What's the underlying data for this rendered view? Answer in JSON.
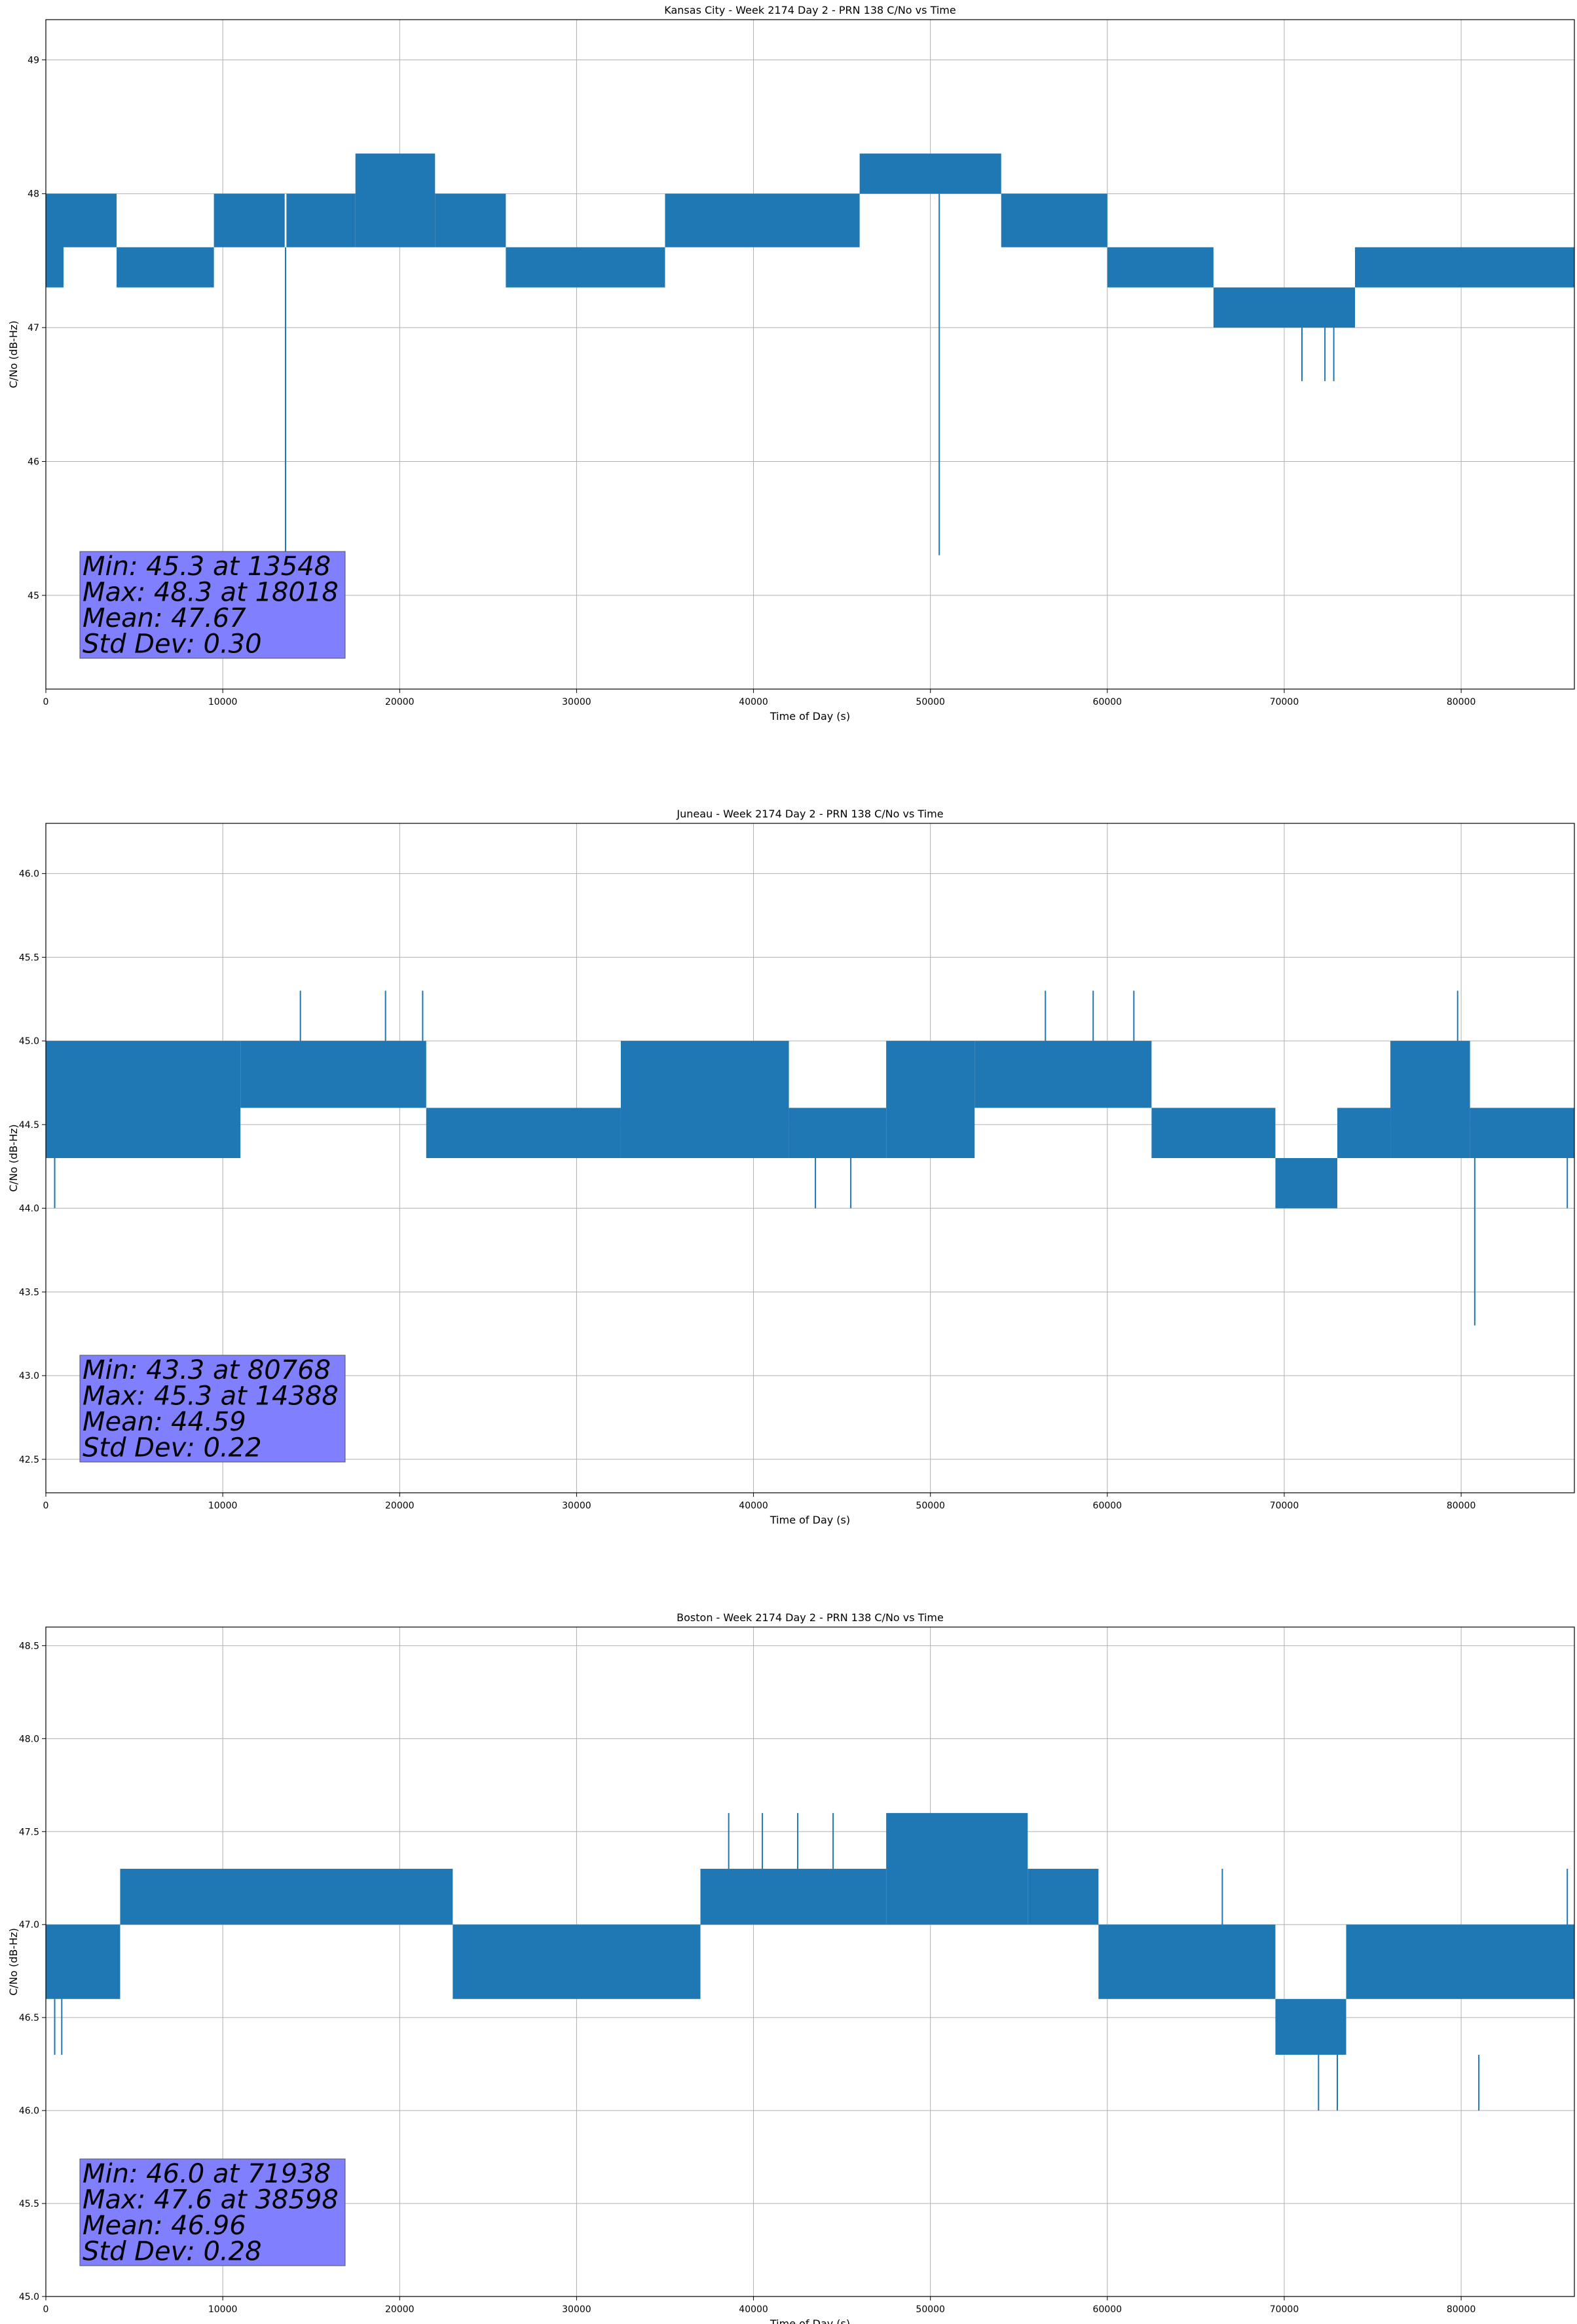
{
  "chart_data": [
    {
      "type": "line",
      "title": "Kansas City - Week 2174 Day 2 - PRN 138 C/No vs Time",
      "xlabel": "Time of Day (s)",
      "ylabel": "C/No (dB-Hz)",
      "xlim": [
        0,
        86400
      ],
      "ylim": [
        44.3,
        49.3
      ],
      "xticks": [
        0,
        10000,
        20000,
        30000,
        40000,
        50000,
        60000,
        70000,
        80000
      ],
      "yticks": [
        45,
        46,
        47,
        48,
        49
      ],
      "ytick_decimals": 0,
      "grid": true,
      "series_color": "#1f77b4",
      "annotation": {
        "lines": [
          "Min: 45.3 at 13548",
          "Max: 48.3 at 18018",
          "Mean: 47.67",
          "Std Dev: 0.30"
        ],
        "color": "#8080ff"
      },
      "bands": [
        {
          "x0": 0,
          "x1": 1000,
          "lo": 47.3,
          "hi": 48.0
        },
        {
          "x0": 1000,
          "x1": 4000,
          "lo": 47.6,
          "hi": 48.0
        },
        {
          "x0": 4000,
          "x1": 9500,
          "lo": 47.3,
          "hi": 47.6
        },
        {
          "x0": 9500,
          "x1": 13500,
          "lo": 47.6,
          "hi": 48.0
        },
        {
          "x0": 13600,
          "x1": 17500,
          "lo": 47.6,
          "hi": 48.0
        },
        {
          "x0": 17500,
          "x1": 22000,
          "lo": 47.6,
          "hi": 48.3
        },
        {
          "x0": 22000,
          "x1": 26000,
          "lo": 47.6,
          "hi": 48.0
        },
        {
          "x0": 26000,
          "x1": 35000,
          "lo": 47.3,
          "hi": 47.6
        },
        {
          "x0": 35000,
          "x1": 46000,
          "lo": 47.6,
          "hi": 48.0
        },
        {
          "x0": 46000,
          "x1": 54000,
          "lo": 48.0,
          "hi": 48.3
        },
        {
          "x0": 54000,
          "x1": 60000,
          "lo": 47.6,
          "hi": 48.0
        },
        {
          "x0": 60000,
          "x1": 66000,
          "lo": 47.3,
          "hi": 47.6
        },
        {
          "x0": 66000,
          "x1": 74000,
          "lo": 47.0,
          "hi": 47.3
        },
        {
          "x0": 74000,
          "x1": 86400,
          "lo": 47.3,
          "hi": 47.6
        }
      ],
      "spikes": [
        {
          "x": 13548,
          "lo": 45.3,
          "hi": 47.6
        },
        {
          "x": 50500,
          "lo": 45.3,
          "hi": 48.0
        },
        {
          "x": 71000,
          "lo": 46.6,
          "hi": 47.0
        },
        {
          "x": 72300,
          "lo": 46.6,
          "hi": 47.0
        },
        {
          "x": 72800,
          "lo": 46.6,
          "hi": 47.0
        }
      ]
    },
    {
      "type": "line",
      "title": "Juneau - Week 2174 Day 2 - PRN 138 C/No vs Time",
      "xlabel": "Time of Day (s)",
      "ylabel": "C/No (dB-Hz)",
      "xlim": [
        0,
        86400
      ],
      "ylim": [
        42.3,
        46.3
      ],
      "xticks": [
        0,
        10000,
        20000,
        30000,
        40000,
        50000,
        60000,
        70000,
        80000
      ],
      "yticks": [
        42.5,
        43.0,
        43.5,
        44.0,
        44.5,
        45.0,
        45.5,
        46.0
      ],
      "ytick_decimals": 1,
      "grid": true,
      "series_color": "#1f77b4",
      "annotation": {
        "lines": [
          "Min: 43.3 at 80768",
          "Max: 45.3 at 14388",
          "Mean: 44.59",
          "Std Dev: 0.22"
        ],
        "color": "#8080ff"
      },
      "bands": [
        {
          "x0": 0,
          "x1": 11000,
          "lo": 44.3,
          "hi": 45.0
        },
        {
          "x0": 11000,
          "x1": 21500,
          "lo": 44.6,
          "hi": 45.0
        },
        {
          "x0": 21500,
          "x1": 32500,
          "lo": 44.3,
          "hi": 44.6
        },
        {
          "x0": 32500,
          "x1": 42000,
          "lo": 44.3,
          "hi": 45.0
        },
        {
          "x0": 42000,
          "x1": 47500,
          "lo": 44.3,
          "hi": 44.6
        },
        {
          "x0": 47500,
          "x1": 52500,
          "lo": 44.3,
          "hi": 45.0
        },
        {
          "x0": 52500,
          "x1": 62500,
          "lo": 44.6,
          "hi": 45.0
        },
        {
          "x0": 62500,
          "x1": 69500,
          "lo": 44.3,
          "hi": 44.6
        },
        {
          "x0": 69500,
          "x1": 73000,
          "lo": 44.0,
          "hi": 44.3
        },
        {
          "x0": 73000,
          "x1": 76000,
          "lo": 44.3,
          "hi": 44.6
        },
        {
          "x0": 76000,
          "x1": 80500,
          "lo": 44.3,
          "hi": 45.0
        },
        {
          "x0": 80500,
          "x1": 86400,
          "lo": 44.3,
          "hi": 44.6
        }
      ],
      "spikes": [
        {
          "x": 14388,
          "lo": 45.0,
          "hi": 45.3
        },
        {
          "x": 19200,
          "lo": 45.0,
          "hi": 45.3
        },
        {
          "x": 21300,
          "lo": 45.0,
          "hi": 45.3
        },
        {
          "x": 56500,
          "lo": 45.0,
          "hi": 45.3
        },
        {
          "x": 59200,
          "lo": 45.0,
          "hi": 45.3
        },
        {
          "x": 61500,
          "lo": 45.0,
          "hi": 45.3
        },
        {
          "x": 79800,
          "lo": 45.0,
          "hi": 45.3
        },
        {
          "x": 80768,
          "lo": 43.3,
          "hi": 44.3
        },
        {
          "x": 500,
          "lo": 44.0,
          "hi": 44.3
        },
        {
          "x": 43500,
          "lo": 44.0,
          "hi": 44.3
        },
        {
          "x": 45500,
          "lo": 44.0,
          "hi": 44.3
        },
        {
          "x": 86000,
          "lo": 44.0,
          "hi": 44.3
        }
      ]
    },
    {
      "type": "line",
      "title": "Boston - Week 2174 Day 2 - PRN 138 C/No vs Time",
      "xlabel": "Time of Day (s)",
      "ylabel": "C/No (dB-Hz)",
      "xlim": [
        0,
        86400
      ],
      "ylim": [
        45.0,
        48.6
      ],
      "xticks": [
        0,
        10000,
        20000,
        30000,
        40000,
        50000,
        60000,
        70000,
        80000
      ],
      "yticks": [
        45.0,
        45.5,
        46.0,
        46.5,
        47.0,
        47.5,
        48.0,
        48.5
      ],
      "ytick_decimals": 1,
      "grid": true,
      "series_color": "#1f77b4",
      "annotation": {
        "lines": [
          "Min: 46.0 at 71938",
          "Max: 47.6 at 38598",
          "Mean: 46.96",
          "Std Dev: 0.28"
        ],
        "color": "#8080ff"
      },
      "bands": [
        {
          "x0": 0,
          "x1": 4200,
          "lo": 46.6,
          "hi": 47.0
        },
        {
          "x0": 4200,
          "x1": 23000,
          "lo": 47.0,
          "hi": 47.3
        },
        {
          "x0": 23000,
          "x1": 37000,
          "lo": 46.6,
          "hi": 47.0
        },
        {
          "x0": 37000,
          "x1": 47500,
          "lo": 47.0,
          "hi": 47.3
        },
        {
          "x0": 47500,
          "x1": 55500,
          "lo": 47.0,
          "hi": 47.6
        },
        {
          "x0": 55500,
          "x1": 59500,
          "lo": 47.0,
          "hi": 47.3
        },
        {
          "x0": 59500,
          "x1": 69500,
          "lo": 46.6,
          "hi": 47.0
        },
        {
          "x0": 69500,
          "x1": 73500,
          "lo": 46.3,
          "hi": 46.6
        },
        {
          "x0": 73500,
          "x1": 86400,
          "lo": 46.6,
          "hi": 47.0
        }
      ],
      "spikes": [
        {
          "x": 38598,
          "lo": 47.3,
          "hi": 47.6
        },
        {
          "x": 40500,
          "lo": 47.3,
          "hi": 47.6
        },
        {
          "x": 42500,
          "lo": 47.3,
          "hi": 47.6
        },
        {
          "x": 44500,
          "lo": 47.3,
          "hi": 47.6
        },
        {
          "x": 71938,
          "lo": 46.0,
          "hi": 46.3
        },
        {
          "x": 73000,
          "lo": 46.0,
          "hi": 46.3
        },
        {
          "x": 81000,
          "lo": 46.0,
          "hi": 46.3
        },
        {
          "x": 500,
          "lo": 46.3,
          "hi": 46.6
        },
        {
          "x": 900,
          "lo": 46.3,
          "hi": 46.6
        },
        {
          "x": 66500,
          "lo": 47.0,
          "hi": 47.3
        },
        {
          "x": 86000,
          "lo": 47.0,
          "hi": 47.3
        }
      ]
    }
  ]
}
